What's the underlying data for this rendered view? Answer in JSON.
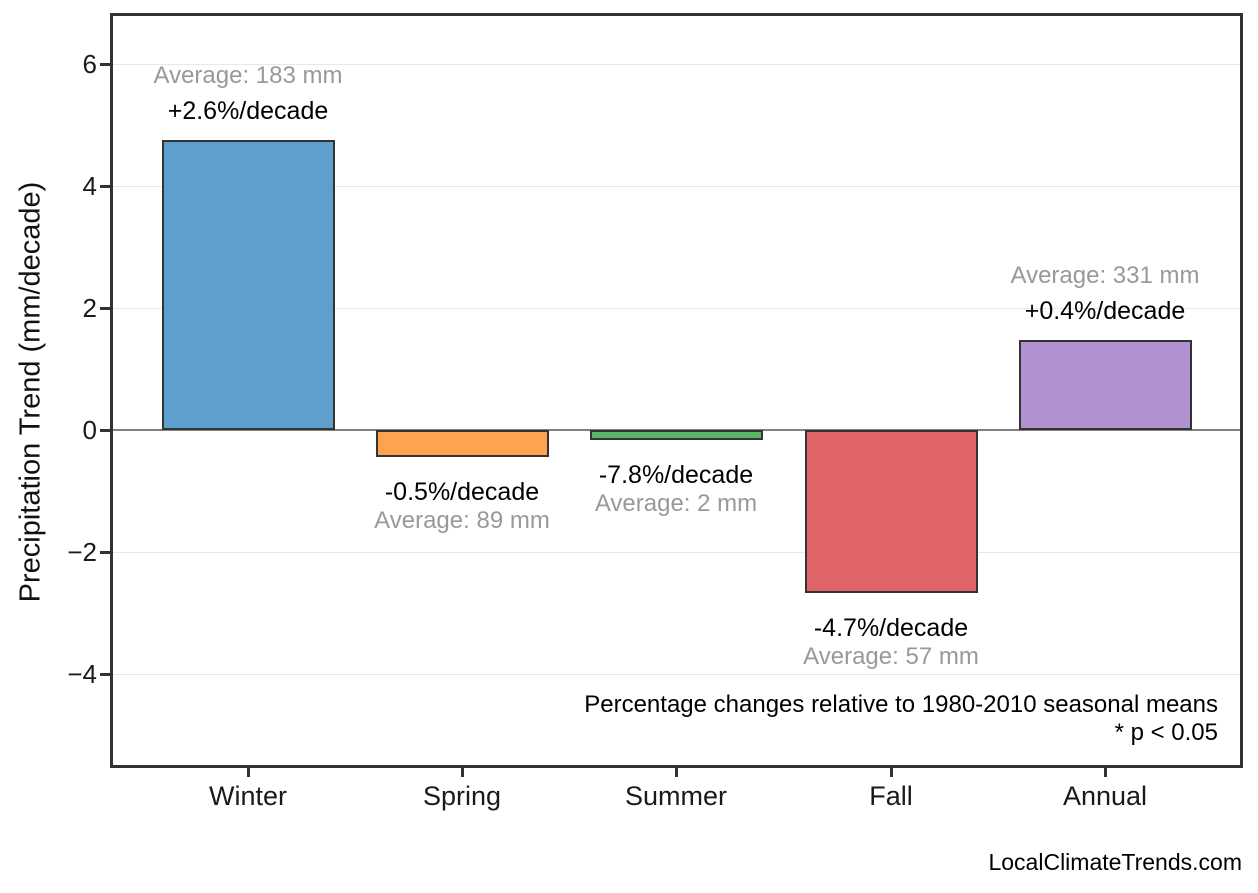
{
  "chart_data": {
    "type": "bar",
    "title": "",
    "xlabel": "",
    "ylabel": "Precipitation Trend (mm/decade)",
    "categories": [
      "Winter",
      "Spring",
      "Summer",
      "Fall",
      "Annual"
    ],
    "values": [
      4.76,
      -0.45,
      -0.156,
      -2.68,
      1.48
    ],
    "bar_colors": [
      "#5e9fcb",
      "#ffa351",
      "#5cb467",
      "#e06467",
      "#b092d0"
    ],
    "bar_edge_color": "#333333",
    "percent_labels": [
      "+2.6%/decade",
      "-0.5%/decade",
      "-7.8%/decade",
      "-4.7%/decade",
      "+0.4%/decade"
    ],
    "average_labels": [
      "Average: 183 mm",
      "Average: 89 mm",
      "Average: 2 mm",
      "Average: 57 mm",
      "Average: 331 mm"
    ],
    "yticks": [
      6,
      4,
      2,
      0,
      -2,
      -4
    ],
    "ylim": [
      -5.5,
      6.82
    ],
    "grid": true,
    "legend": false,
    "annotations": [
      "Percentage changes relative to 1980-2010 seasonal means",
      "* p < 0.05"
    ],
    "watermark": "LocalClimateTrends.com",
    "colors": {
      "grid": "#e8e8e8",
      "zero_line": "#808080",
      "frame": "#333333",
      "percent_text": "#000000",
      "average_text": "#999999"
    }
  }
}
